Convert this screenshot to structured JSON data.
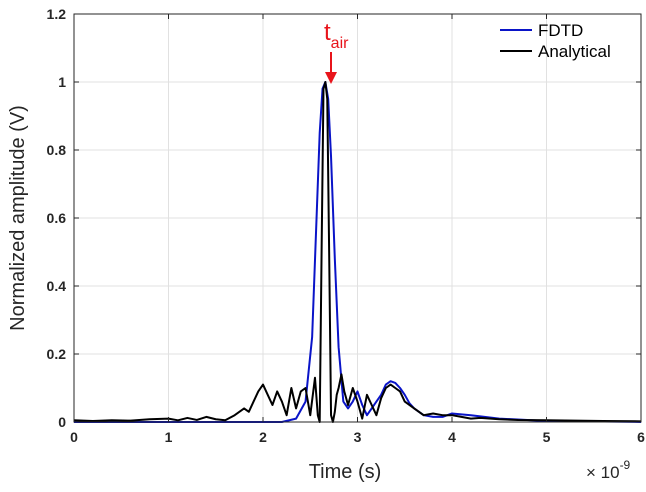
{
  "chart_data": {
    "type": "line",
    "xlabel": "Time (s)",
    "ylabel": "Normalized amplitude (V)",
    "x_multiplier": {
      "base": "× 10",
      "exponent": "-9"
    },
    "xlim": [
      0,
      6
    ],
    "ylim": [
      0,
      1.2
    ],
    "x_ticks": [
      0,
      1,
      2,
      3,
      4,
      5,
      6
    ],
    "y_ticks": [
      0,
      0.2,
      0.4,
      0.6,
      0.8,
      1,
      1.2
    ],
    "grid": true,
    "legend_position": "top-right",
    "annotation": {
      "text": "t",
      "subscript": "air",
      "x": 2.66,
      "y": 1.0,
      "color": "#e8141b"
    },
    "series": [
      {
        "name": "FDTD",
        "color": "#0a14c8",
        "x": [
          0,
          0.5,
          1.0,
          1.5,
          2.0,
          2.2,
          2.35,
          2.45,
          2.52,
          2.56,
          2.6,
          2.63,
          2.66,
          2.69,
          2.72,
          2.76,
          2.8,
          2.85,
          2.9,
          2.95,
          3.0,
          3.05,
          3.1,
          3.15,
          3.2,
          3.25,
          3.3,
          3.35,
          3.4,
          3.45,
          3.5,
          3.55,
          3.6,
          3.7,
          3.8,
          3.9,
          4.0,
          4.2,
          4.5,
          5.0,
          5.5,
          6.0
        ],
        "y": [
          0.0,
          0.0,
          0.0,
          0.0,
          0.0,
          0.0,
          0.01,
          0.06,
          0.25,
          0.55,
          0.85,
          0.98,
          1.0,
          0.95,
          0.78,
          0.48,
          0.22,
          0.06,
          0.04,
          0.06,
          0.09,
          0.05,
          0.02,
          0.04,
          0.06,
          0.08,
          0.11,
          0.12,
          0.115,
          0.1,
          0.08,
          0.055,
          0.04,
          0.02,
          0.015,
          0.015,
          0.025,
          0.02,
          0.01,
          0.003,
          0.002,
          0.0
        ]
      },
      {
        "name": "Analytical",
        "color": "#000000",
        "x": [
          0,
          0.2,
          0.4,
          0.6,
          0.8,
          1.0,
          1.1,
          1.2,
          1.3,
          1.4,
          1.5,
          1.6,
          1.7,
          1.8,
          1.85,
          1.9,
          1.95,
          2.0,
          2.05,
          2.1,
          2.15,
          2.2,
          2.25,
          2.3,
          2.35,
          2.4,
          2.45,
          2.5,
          2.55,
          2.58,
          2.6,
          2.62,
          2.64,
          2.66,
          2.68,
          2.7,
          2.72,
          2.74,
          2.76,
          2.78,
          2.8,
          2.83,
          2.86,
          2.9,
          2.95,
          3.0,
          3.05,
          3.1,
          3.15,
          3.2,
          3.25,
          3.3,
          3.35,
          3.4,
          3.45,
          3.5,
          3.6,
          3.7,
          3.8,
          3.9,
          4.0,
          4.1,
          4.2,
          4.3,
          4.5,
          4.7,
          5.0,
          5.3,
          5.6,
          6.0
        ],
        "y": [
          0.005,
          0.003,
          0.005,
          0.004,
          0.008,
          0.01,
          0.005,
          0.012,
          0.006,
          0.015,
          0.008,
          0.005,
          0.02,
          0.04,
          0.03,
          0.06,
          0.09,
          0.11,
          0.08,
          0.05,
          0.09,
          0.06,
          0.02,
          0.1,
          0.04,
          0.09,
          0.1,
          0.02,
          0.13,
          0.02,
          0.0,
          0.5,
          0.98,
          1.0,
          0.95,
          0.5,
          0.02,
          0.0,
          0.03,
          0.08,
          0.1,
          0.14,
          0.09,
          0.05,
          0.1,
          0.06,
          0.01,
          0.08,
          0.05,
          0.02,
          0.07,
          0.1,
          0.11,
          0.1,
          0.09,
          0.06,
          0.04,
          0.02,
          0.025,
          0.02,
          0.02,
          0.015,
          0.01,
          0.012,
          0.008,
          0.006,
          0.005,
          0.004,
          0.003,
          0.002
        ]
      }
    ]
  }
}
